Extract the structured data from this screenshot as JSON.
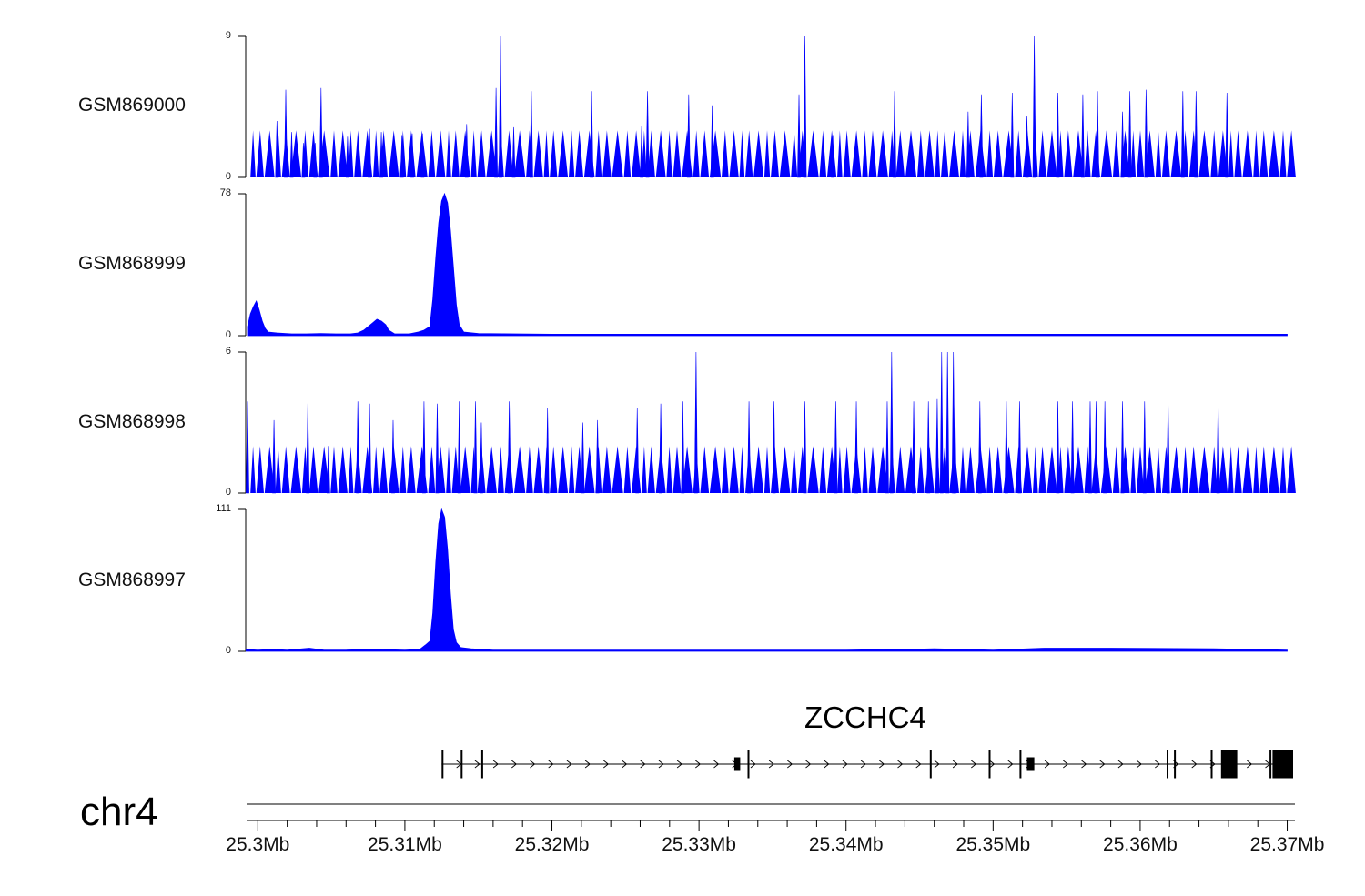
{
  "colors": {
    "signal": "#0000ff",
    "gene": "#000000",
    "axis": "#000000"
  },
  "chromosome": "chr4",
  "chart_data": [
    {
      "type": "area",
      "title": "",
      "series": [
        {
          "name": "GSM869000"
        }
      ],
      "ylim": [
        0,
        9
      ],
      "ymin_label": "0",
      "ymax_label": "9",
      "peaks": [
        [
          25.3013,
          3.6
        ],
        [
          25.3019,
          5.6
        ],
        [
          25.3023,
          2.9
        ],
        [
          25.3031,
          2.2
        ],
        [
          25.3039,
          2.2
        ],
        [
          25.3043,
          5.7
        ],
        [
          25.3061,
          2.6
        ],
        [
          25.3076,
          3.1
        ],
        [
          25.3084,
          2.9
        ],
        [
          25.3098,
          2.7
        ],
        [
          25.3105,
          2.8
        ],
        [
          25.3112,
          2.8
        ],
        [
          25.3142,
          3.4
        ],
        [
          25.3165,
          9.0
        ],
        [
          25.3162,
          5.7
        ],
        [
          25.3174,
          3.2
        ],
        [
          25.3186,
          5.5
        ],
        [
          25.3227,
          5.5
        ],
        [
          25.3261,
          3.3
        ],
        [
          25.3265,
          5.5
        ],
        [
          25.3293,
          5.3
        ],
        [
          25.3309,
          4.6
        ],
        [
          25.3368,
          5.3
        ],
        [
          25.3372,
          9.0
        ],
        [
          25.3391,
          2.7
        ],
        [
          25.3433,
          5.5
        ],
        [
          25.3483,
          4.2
        ],
        [
          25.3492,
          5.3
        ],
        [
          25.3513,
          5.4
        ],
        [
          25.3523,
          3.9
        ],
        [
          25.3528,
          9.0
        ],
        [
          25.3544,
          5.4
        ],
        [
          25.3561,
          5.3
        ],
        [
          25.3571,
          5.5
        ],
        [
          25.3588,
          4.2
        ],
        [
          25.3593,
          5.5
        ],
        [
          25.3604,
          5.6
        ],
        [
          25.3629,
          5.5
        ],
        [
          25.3638,
          5.5
        ],
        [
          25.3659,
          5.4
        ]
      ]
    },
    {
      "type": "area",
      "title": "",
      "series": [
        {
          "name": "GSM868999"
        }
      ],
      "ylim": [
        0,
        78
      ],
      "ymin_label": "0",
      "ymax_label": "78",
      "points": [
        [
          25.2993,
          5
        ],
        [
          25.2995,
          12
        ],
        [
          25.2997,
          16
        ],
        [
          25.2999,
          19
        ],
        [
          25.3001,
          14
        ],
        [
          25.3003,
          8
        ],
        [
          25.3005,
          4
        ],
        [
          25.3007,
          2
        ],
        [
          25.3013,
          1.5
        ],
        [
          25.3023,
          1
        ],
        [
          25.3033,
          1
        ],
        [
          25.3043,
          1.2
        ],
        [
          25.3053,
          1
        ],
        [
          25.3063,
          1
        ],
        [
          25.3068,
          1.5
        ],
        [
          25.3072,
          3
        ],
        [
          25.3075,
          5
        ],
        [
          25.3078,
          7
        ],
        [
          25.3081,
          9
        ],
        [
          25.3084,
          8
        ],
        [
          25.3087,
          6
        ],
        [
          25.3089,
          3
        ],
        [
          25.3093,
          1
        ],
        [
          25.3103,
          1
        ],
        [
          25.3109,
          2
        ],
        [
          25.3113,
          3
        ],
        [
          25.3117,
          5
        ],
        [
          25.3119,
          20
        ],
        [
          25.3121,
          43
        ],
        [
          25.3123,
          62
        ],
        [
          25.3125,
          74
        ],
        [
          25.3127,
          78
        ],
        [
          25.3129,
          73
        ],
        [
          25.3131,
          58
        ],
        [
          25.3133,
          38
        ],
        [
          25.3135,
          17
        ],
        [
          25.3137,
          6
        ],
        [
          25.314,
          2
        ],
        [
          25.315,
          1.2
        ],
        [
          25.32,
          0.8
        ],
        [
          25.33,
          0.8
        ],
        [
          25.34,
          0.8
        ],
        [
          25.35,
          0.8
        ],
        [
          25.36,
          0.8
        ],
        [
          25.37,
          0.8
        ]
      ]
    },
    {
      "type": "area",
      "title": "",
      "series": [
        {
          "name": "GSM868998"
        }
      ],
      "ylim": [
        0,
        6
      ],
      "ymin_label": "0",
      "ymax_label": "6",
      "peaks": [
        [
          25.2993,
          3.9
        ],
        [
          25.3011,
          3.1
        ],
        [
          25.3034,
          3.8
        ],
        [
          25.3048,
          2.0
        ],
        [
          25.3068,
          3.9
        ],
        [
          25.3076,
          3.8
        ],
        [
          25.3092,
          3.1
        ],
        [
          25.3113,
          3.9
        ],
        [
          25.3122,
          3.8
        ],
        [
          25.3137,
          3.9
        ],
        [
          25.3148,
          3.9
        ],
        [
          25.3152,
          3.0
        ],
        [
          25.3171,
          3.9
        ],
        [
          25.3197,
          3.6
        ],
        [
          25.3221,
          3.0
        ],
        [
          25.3231,
          3.1
        ],
        [
          25.3258,
          3.6
        ],
        [
          25.3274,
          3.8
        ],
        [
          25.3289,
          3.9
        ],
        [
          25.3298,
          6.0
        ],
        [
          25.3334,
          3.9
        ],
        [
          25.3351,
          3.9
        ],
        [
          25.3372,
          3.9
        ],
        [
          25.3393,
          3.9
        ],
        [
          25.3407,
          3.9
        ],
        [
          25.3428,
          3.9
        ],
        [
          25.3431,
          6.0
        ],
        [
          25.3446,
          3.9
        ],
        [
          25.3456,
          3.9
        ],
        [
          25.3462,
          4.0
        ],
        [
          25.3465,
          6.0
        ],
        [
          25.3469,
          6.0
        ],
        [
          25.3473,
          6.0
        ],
        [
          25.3474,
          3.8
        ],
        [
          25.3491,
          3.9
        ],
        [
          25.3509,
          3.9
        ],
        [
          25.3518,
          3.9
        ],
        [
          25.3544,
          3.9
        ],
        [
          25.3554,
          3.9
        ],
        [
          25.3566,
          3.9
        ],
        [
          25.357,
          3.9
        ],
        [
          25.3576,
          3.9
        ],
        [
          25.3588,
          3.9
        ],
        [
          25.3603,
          3.9
        ],
        [
          25.3619,
          3.9
        ],
        [
          25.3653,
          3.9
        ]
      ]
    },
    {
      "type": "area",
      "title": "",
      "series": [
        {
          "name": "GSM868997"
        }
      ],
      "ylim": [
        0,
        111
      ],
      "ymin_label": "0",
      "ymax_label": "111",
      "points": [
        [
          25.2992,
          1.5
        ],
        [
          25.3,
          1
        ],
        [
          25.301,
          1.5
        ],
        [
          25.302,
          1
        ],
        [
          25.3035,
          2.5
        ],
        [
          25.3045,
          1
        ],
        [
          25.306,
          1
        ],
        [
          25.308,
          1.5
        ],
        [
          25.31,
          1
        ],
        [
          25.311,
          1.5
        ],
        [
          25.3114,
          5
        ],
        [
          25.3117,
          8
        ],
        [
          25.3119,
          30
        ],
        [
          25.3121,
          70
        ],
        [
          25.3123,
          100
        ],
        [
          25.3125,
          111
        ],
        [
          25.3127,
          105
        ],
        [
          25.3129,
          80
        ],
        [
          25.3131,
          45
        ],
        [
          25.3133,
          17
        ],
        [
          25.3135,
          7
        ],
        [
          25.3138,
          3
        ],
        [
          25.3145,
          2
        ],
        [
          25.316,
          1
        ],
        [
          25.32,
          1
        ],
        [
          25.33,
          1
        ],
        [
          25.34,
          1
        ],
        [
          25.346,
          2
        ],
        [
          25.35,
          1
        ],
        [
          25.3535,
          2.5
        ],
        [
          25.358,
          2.5
        ],
        [
          25.365,
          2
        ],
        [
          25.37,
          1
        ]
      ]
    }
  ],
  "gene_track": {
    "gene_name": "ZCCHC4",
    "strand": "+",
    "exons": [
      [
        25.3125,
        25.3126
      ],
      [
        25.3138,
        25.3139
      ],
      [
        25.3152,
        25.3153
      ],
      [
        25.3324,
        25.3328
      ],
      [
        25.3333,
        25.3334
      ],
      [
        25.3457,
        25.3458
      ],
      [
        25.3497,
        25.3498
      ],
      [
        25.3518,
        25.3519
      ],
      [
        25.3523,
        25.3528
      ],
      [
        25.3618,
        25.3619
      ],
      [
        25.3623,
        25.3624
      ],
      [
        25.3648,
        25.3649
      ],
      [
        25.3655,
        25.3666
      ],
      [
        25.3688,
        25.3689
      ],
      [
        25.369,
        25.3704
      ]
    ],
    "transcript_start": 25.3125,
    "transcript_end": 25.3704
  },
  "x_axis": {
    "range": [
      25.2993,
      25.3704
    ],
    "ticks": [
      {
        "value": 25.3,
        "label": "25.3Mb"
      },
      {
        "value": 25.31,
        "label": "25.31Mb"
      },
      {
        "value": 25.32,
        "label": "25.32Mb"
      },
      {
        "value": 25.33,
        "label": "25.33Mb"
      },
      {
        "value": 25.34,
        "label": "25.34Mb"
      },
      {
        "value": 25.35,
        "label": "25.35Mb"
      },
      {
        "value": 25.36,
        "label": "25.36Mb"
      },
      {
        "value": 25.37,
        "label": "25.37Mb"
      }
    ],
    "minor_ticks": [
      25.302,
      25.304,
      25.306,
      25.308,
      25.312,
      25.314,
      25.316,
      25.318,
      25.322,
      25.324,
      25.326,
      25.328,
      25.332,
      25.334,
      25.336,
      25.338,
      25.342,
      25.344,
      25.346,
      25.348,
      25.352,
      25.354,
      25.356,
      25.358,
      25.362,
      25.364,
      25.366,
      25.368
    ]
  }
}
